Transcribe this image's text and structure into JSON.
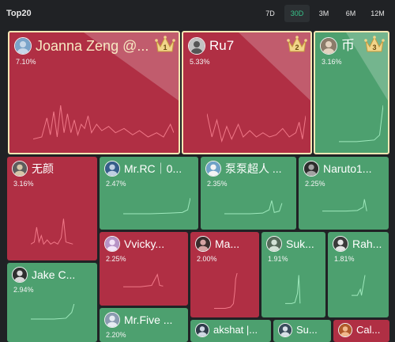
{
  "header": {
    "title": "Top20",
    "periods": [
      "7D",
      "30D",
      "3M",
      "6M",
      "12M"
    ],
    "active_period": "30D"
  },
  "colors": {
    "negative": "#b02f44",
    "positive": "#4da06f",
    "accent": "#37c48a",
    "background": "#202225"
  },
  "tiles": [
    {
      "name": "Joanna Zeng @...",
      "pct": "7.10%",
      "rank": "1",
      "trend": "negative"
    },
    {
      "name": "Ru7",
      "pct": "5.33%",
      "rank": "2",
      "trend": "negative"
    },
    {
      "name": "币",
      "pct": "3.16%",
      "rank": "3",
      "trend": "positive"
    },
    {
      "name": "无颜",
      "pct": "3.16%",
      "trend": "negative"
    },
    {
      "name": "Mr.RC｜0...",
      "pct": "2.47%",
      "trend": "positive"
    },
    {
      "name": "泵泵超人 ...",
      "pct": "2.35%",
      "trend": "positive"
    },
    {
      "name": "Naruto1...",
      "pct": "2.25%",
      "trend": "positive"
    },
    {
      "name": "Vvicky...",
      "pct": "2.25%",
      "trend": "negative"
    },
    {
      "name": "Ma...",
      "pct": "2.00%",
      "trend": "negative"
    },
    {
      "name": "Suk...",
      "pct": "1.91%",
      "trend": "positive"
    },
    {
      "name": "Rah...",
      "pct": "1.81%",
      "trend": "positive"
    },
    {
      "name": "Jake C...",
      "pct": "2.94%",
      "trend": "positive"
    },
    {
      "name": "Mr.Five ...",
      "pct": "2.20%",
      "trend": "positive"
    },
    {
      "name": "akshat |...",
      "pct": "",
      "trend": "positive"
    },
    {
      "name": "Su...",
      "pct": "",
      "trend": "positive"
    },
    {
      "name": "Cal...",
      "pct": "",
      "trend": "negative"
    }
  ]
}
